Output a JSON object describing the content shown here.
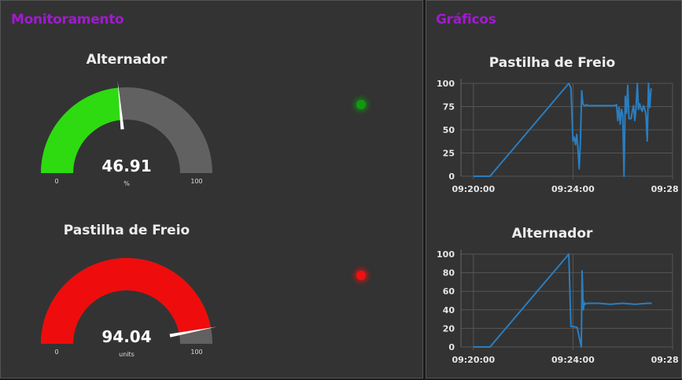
{
  "panels": {
    "monitoring_title": "Monitoramento",
    "charts_title": "Gráficos"
  },
  "gauges": [
    {
      "title": "Alternador",
      "value_text": "46.91",
      "value": 46.91,
      "unit": "%",
      "min_label": "0",
      "max_label": "100",
      "min": 0,
      "max": 100,
      "color": "#2ddb10",
      "track_color": "#616161"
    },
    {
      "title": "Pastilha de Freio",
      "value_text": "94.04",
      "value": 94.04,
      "unit": "units",
      "min_label": "0",
      "max_label": "100",
      "min": 0,
      "max": 100,
      "color": "#ef0c0c",
      "track_color": "#616161"
    }
  ],
  "leds": [
    {
      "name": "alternador-status-led",
      "color": "#0e9a0e",
      "status": "green"
    },
    {
      "name": "pastilha-status-led",
      "color": "#f01010",
      "status": "red"
    }
  ],
  "chart_data": [
    {
      "type": "line",
      "title": "Pastilha de Freio",
      "xlabel": "",
      "ylabel": "",
      "x_tick_labels": [
        "09:20:00",
        "09:24:00",
        "09:28:00"
      ],
      "x_tick_minutes": [
        0,
        4,
        8
      ],
      "xlim": [
        "09:19:30",
        "09:28:00"
      ],
      "y_ticks": [
        0,
        25,
        50,
        75,
        100
      ],
      "ylim": [
        0,
        100
      ],
      "grid": true,
      "line_color": "#2a7ec0",
      "series": [
        {
          "x": [
            "09:20:00",
            "09:20:40",
            "09:23:50",
            "09:23:55",
            "09:24:00",
            "09:24:03",
            "09:24:06",
            "09:24:09",
            "09:24:12",
            "09:24:15",
            "09:24:18",
            "09:24:21",
            "09:24:24",
            "09:24:27",
            "09:24:30",
            "09:24:33",
            "09:24:36",
            "09:24:45",
            "09:25:00",
            "09:25:15",
            "09:25:30",
            "09:25:40",
            "09:25:45",
            "09:25:48",
            "09:25:51",
            "09:25:54",
            "09:25:57",
            "09:26:00",
            "09:26:03",
            "09:26:06",
            "09:26:09",
            "09:26:12",
            "09:26:15",
            "09:26:20",
            "09:26:23",
            "09:26:26",
            "09:26:29",
            "09:26:32",
            "09:26:35",
            "09:26:38",
            "09:26:41",
            "09:26:44",
            "09:26:47",
            "09:26:50",
            "09:26:53",
            "09:26:56",
            "09:26:59",
            "09:27:02",
            "09:27:05",
            "09:27:08",
            "09:27:10"
          ],
          "y": [
            0,
            0,
            100,
            95,
            38,
            42,
            34,
            45,
            30,
            8,
            38,
            92,
            78,
            76,
            76,
            77,
            76,
            76,
            76,
            76,
            76,
            76,
            77,
            60,
            74,
            56,
            72,
            66,
            0,
            86,
            68,
            98,
            62,
            62,
            70,
            76,
            60,
            74,
            100,
            72,
            78,
            73,
            70,
            76,
            72,
            66,
            38,
            100,
            74,
            94,
            94
          ]
        }
      ]
    },
    {
      "type": "line",
      "title": "Alternador",
      "xlabel": "",
      "ylabel": "",
      "x_tick_labels": [
        "09:20:00",
        "09:24:00",
        "09:28:00"
      ],
      "x_tick_minutes": [
        0,
        4,
        8
      ],
      "xlim": [
        "09:19:30",
        "09:28:00"
      ],
      "y_ticks": [
        0,
        20,
        40,
        60,
        80,
        100
      ],
      "ylim": [
        0,
        100
      ],
      "grid": true,
      "line_color": "#2a7ec0",
      "series": [
        {
          "x": [
            "09:20:00",
            "09:20:40",
            "09:23:50",
            "09:23:55",
            "09:24:00",
            "09:24:10",
            "09:24:20",
            "09:24:22",
            "09:24:25",
            "09:24:27",
            "09:24:29",
            "09:24:35",
            "09:25:00",
            "09:25:30",
            "09:26:00",
            "09:26:30",
            "09:27:00",
            "09:27:10"
          ],
          "y": [
            0,
            0,
            100,
            22,
            22,
            21,
            0,
            82,
            40,
            48,
            46,
            47,
            47,
            46,
            47,
            46,
            47,
            47
          ]
        }
      ]
    }
  ]
}
